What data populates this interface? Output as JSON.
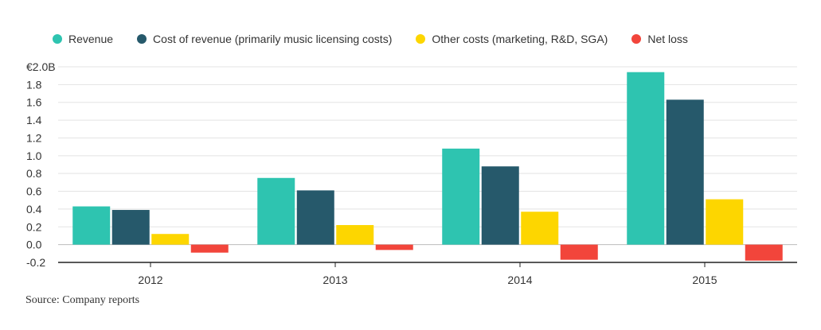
{
  "chart_data": {
    "type": "bar",
    "title": "",
    "xlabel": "",
    "ylabel": "",
    "categories": [
      "2012",
      "2013",
      "2014",
      "2015"
    ],
    "series": [
      {
        "name": "Revenue",
        "color": "#2ec4b0",
        "values": [
          0.43,
          0.75,
          1.08,
          1.94
        ]
      },
      {
        "name": "Cost of revenue (primarily music licensing costs)",
        "color": "#26596b",
        "values": [
          0.39,
          0.61,
          0.88,
          1.63
        ]
      },
      {
        "name": "Other costs (marketing, R&D, SGA)",
        "color": "#fdd600",
        "values": [
          0.12,
          0.22,
          0.37,
          0.51
        ]
      },
      {
        "name": "Net loss",
        "color": "#f2453b",
        "values": [
          -0.09,
          -0.06,
          -0.17,
          -0.18
        ]
      }
    ],
    "ylim": [
      -0.2,
      2.0
    ],
    "yticks": [
      -0.2,
      0.0,
      0.2,
      0.4,
      0.6,
      0.8,
      1.0,
      1.2,
      1.4,
      1.6,
      1.8,
      2.0
    ],
    "ytick_labels": [
      "-0.2",
      "0.0",
      "0.2",
      "0.4",
      "0.6",
      "0.8",
      "1.0",
      "1.2",
      "1.4",
      "1.6",
      "1.8",
      "€2.0B"
    ],
    "grid": true,
    "legend_position": "top-left"
  },
  "source": "Source: Company reports"
}
